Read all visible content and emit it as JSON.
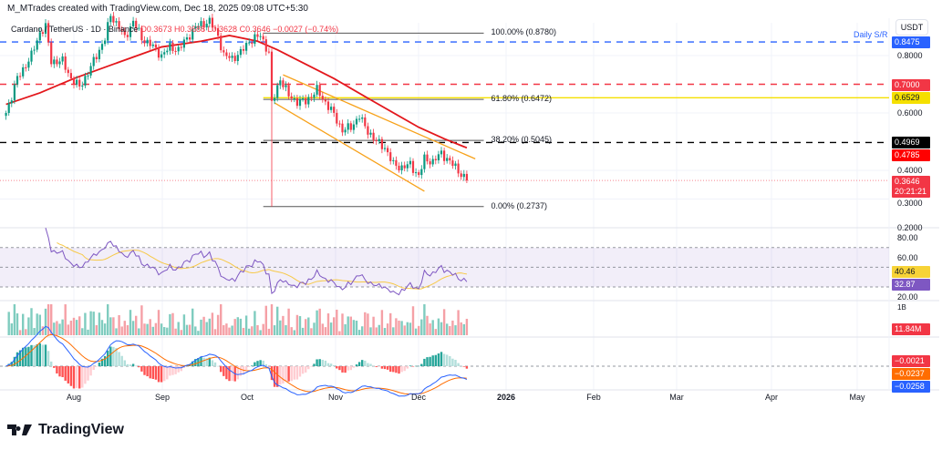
{
  "credit": "M_MTrades created with TradingView.com, Dec 18, 2025 09:08 UTC+5:30",
  "legend": {
    "symbol": "Cardano / TetherUS · 1D · Binance",
    "open": "O0.3673",
    "high": "H0.3688",
    "low": "L0.3628",
    "close": "C0.3646",
    "change": "−0.0027 (−0.74%)"
  },
  "currency": "USDT",
  "brand": "TradingView",
  "chart_data": {
    "type": "candlestick",
    "scale": "linear",
    "time_axis": [
      "Aug",
      "Sep",
      "Oct",
      "Nov",
      "Dec",
      "2026",
      "Feb",
      "Mar",
      "Apr",
      "May"
    ],
    "price_ticks": [
      "0.8000",
      "0.6000",
      "0.4000",
      "0.3000",
      "0.2000"
    ],
    "close_path": [
      [
        "2025-07-08",
        0.6
      ],
      [
        "2025-07-12",
        0.72
      ],
      [
        "2025-07-17",
        0.8
      ],
      [
        "2025-07-20",
        0.88
      ],
      [
        "2025-07-22",
        0.9
      ],
      [
        "2025-07-24",
        0.78
      ],
      [
        "2025-07-28",
        0.78
      ],
      [
        "2025-07-31",
        0.72
      ],
      [
        "2025-08-03",
        0.69
      ],
      [
        "2025-08-06",
        0.74
      ],
      [
        "2025-08-09",
        0.8
      ],
      [
        "2025-08-12",
        0.86
      ],
      [
        "2025-08-14",
        0.94
      ],
      [
        "2025-08-17",
        0.9
      ],
      [
        "2025-08-19",
        0.86
      ],
      [
        "2025-08-22",
        0.92
      ],
      [
        "2025-08-25",
        0.86
      ],
      [
        "2025-08-28",
        0.84
      ],
      [
        "2025-09-01",
        0.8
      ],
      [
        "2025-09-04",
        0.83
      ],
      [
        "2025-09-07",
        0.82
      ],
      [
        "2025-09-10",
        0.86
      ],
      [
        "2025-09-13",
        0.9
      ],
      [
        "2025-09-18",
        0.92
      ],
      [
        "2025-09-21",
        0.87
      ],
      [
        "2025-09-23",
        0.8
      ],
      [
        "2025-09-26",
        0.79
      ],
      [
        "2025-09-29",
        0.81
      ],
      [
        "2025-10-02",
        0.85
      ],
      [
        "2025-10-06",
        0.87
      ],
      [
        "2025-10-09",
        0.81
      ],
      [
        "2025-10-10",
        0.63
      ],
      [
        "2025-10-13",
        0.72
      ],
      [
        "2025-10-16",
        0.66
      ],
      [
        "2025-10-19",
        0.64
      ],
      [
        "2025-10-22",
        0.64
      ],
      [
        "2025-10-26",
        0.68
      ],
      [
        "2025-10-28",
        0.65
      ],
      [
        "2025-10-31",
        0.61
      ],
      [
        "2025-11-04",
        0.54
      ],
      [
        "2025-11-07",
        0.55
      ],
      [
        "2025-11-10",
        0.59
      ],
      [
        "2025-11-12",
        0.55
      ],
      [
        "2025-11-16",
        0.5
      ],
      [
        "2025-11-19",
        0.48
      ],
      [
        "2025-11-22",
        0.42
      ],
      [
        "2025-11-25",
        0.41
      ],
      [
        "2025-11-28",
        0.42
      ],
      [
        "2025-12-01",
        0.38
      ],
      [
        "2025-12-03",
        0.44
      ],
      [
        "2025-12-06",
        0.43
      ],
      [
        "2025-12-09",
        0.46
      ],
      [
        "2025-12-11",
        0.44
      ],
      [
        "2025-12-14",
        0.41
      ],
      [
        "2025-12-18",
        0.3646
      ]
    ],
    "crash_wick": {
      "date": "2025-10-10",
      "low": 0.2737
    },
    "moving_average": {
      "color": "#e3171c",
      "path": [
        [
          "2025-07-08",
          0.63
        ],
        [
          "2025-07-20",
          0.67
        ],
        [
          "2025-08-01",
          0.72
        ],
        [
          "2025-08-15",
          0.77
        ],
        [
          "2025-09-01",
          0.83
        ],
        [
          "2025-09-15",
          0.85
        ],
        [
          "2025-09-25",
          0.87
        ],
        [
          "2025-10-05",
          0.85
        ],
        [
          "2025-10-12",
          0.82
        ],
        [
          "2025-10-20",
          0.78
        ],
        [
          "2025-11-01",
          0.72
        ],
        [
          "2025-11-15",
          0.64
        ],
        [
          "2025-12-01",
          0.55
        ],
        [
          "2025-12-10",
          0.51
        ],
        [
          "2025-12-18",
          0.4785
        ]
      ]
    },
    "levels": [
      {
        "price": 0.8475,
        "label": "0.8475",
        "color": "#2962ff",
        "style": "dashed",
        "note": "Daily S/R"
      },
      {
        "price": 0.7,
        "label": "0.7000",
        "color": "#f23645",
        "style": "dashed"
      },
      {
        "price": 0.6529,
        "label": "0.6529",
        "color": "#f5e000",
        "style": "solid",
        "from": "2025-10-07"
      },
      {
        "price": 0.4969,
        "label": "0.4969",
        "color": "#000000",
        "style": "dashed"
      },
      {
        "price": 0.4785,
        "label": "0.4785",
        "color": "#ff0000",
        "style": "ma"
      },
      {
        "price": 0.3646,
        "label": "0.3646",
        "sub": "20:21:21",
        "color": "#f23645",
        "style": "dotted"
      }
    ],
    "fibonacci": {
      "from": "2025-10-07",
      "to": "2025-12-24",
      "levels": [
        {
          "price": 0.878,
          "label": "100.00% (0.8780)"
        },
        {
          "price": 0.6472,
          "label": "61.80% (0.6472)"
        },
        {
          "price": 0.5045,
          "label": "38.20% (0.5045)"
        },
        {
          "price": 0.2737,
          "label": "0.00% (0.2737)"
        }
      ]
    },
    "channel": {
      "color": "#f7a21b",
      "upper": [
        [
          "2025-10-14",
          0.733
        ],
        [
          "2025-12-21",
          0.44
        ]
      ],
      "lower": [
        [
          "2025-10-11",
          0.635
        ],
        [
          "2025-12-03",
          0.327
        ]
      ]
    },
    "rsi": {
      "ticks": [
        "80.00",
        "60.00",
        "20.00"
      ],
      "value": "40.46",
      "ma_value": "32.87",
      "band": [
        30,
        70
      ]
    },
    "volume": {
      "value": "11.84M",
      "tick": "1B"
    },
    "macd": {
      "values": [
        "−0.0021",
        "−0.0237",
        "−0.0258"
      ],
      "colors": [
        "#f23645",
        "#ff6d00",
        "#2962ff"
      ]
    }
  }
}
